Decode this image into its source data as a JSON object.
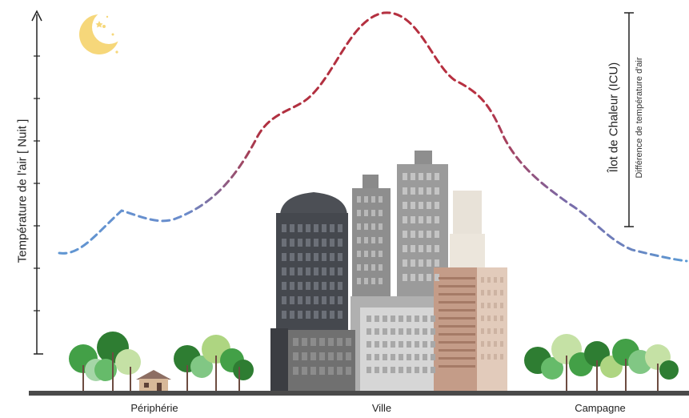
{
  "diagram": {
    "y_axis_label": "Température de l'air [ Nuit ]",
    "icu_title": "Îlot de Chaleur (ICU)",
    "icu_subtitle": "Différence de température d'air",
    "zones": [
      "Périphérie",
      "Ville",
      "Campagne"
    ],
    "icons": [
      "moon-icon",
      "house-icon",
      "tree-icon",
      "building-icon"
    ],
    "colors": {
      "cool": "#5b9bd5",
      "warm": "#c0392b",
      "ground": "#4a4a4a",
      "tree": "#4caf50",
      "building": "#6e6e6e"
    }
  }
}
